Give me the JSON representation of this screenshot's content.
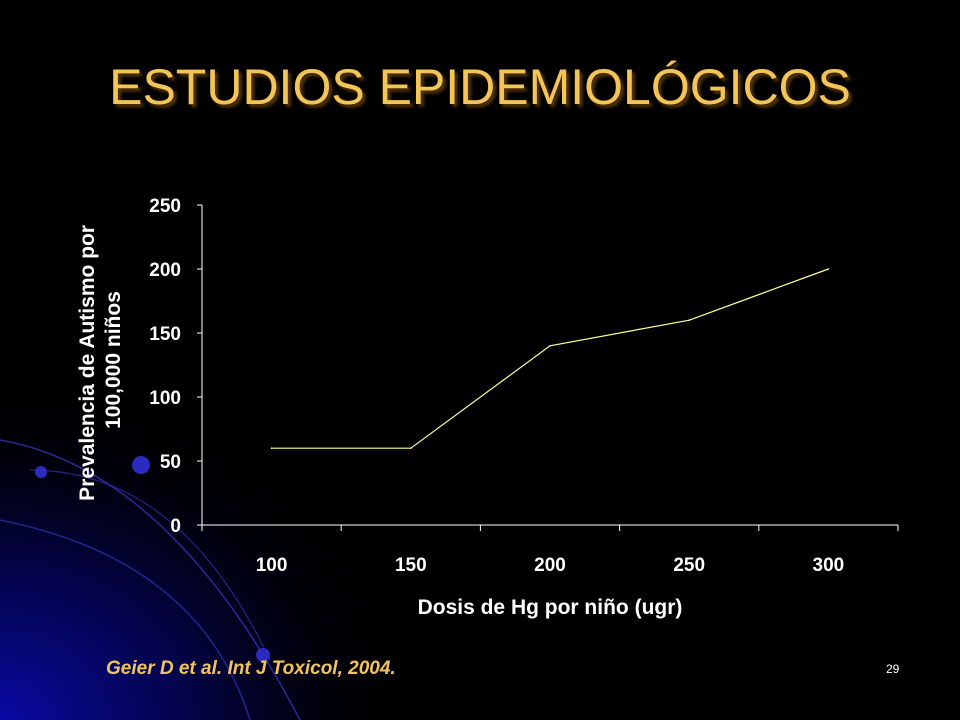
{
  "slide": {
    "title": "ESTUDIOS EPIDEMIOLÓGICOS",
    "citation": "Geier D et al. Int J Toxicol, 2004.",
    "page_number": "29",
    "colors": {
      "background": "#000000",
      "title": "#f3c458",
      "line": "#ffff99",
      "axis": "#ffffff",
      "decor": "#0a0a9a"
    }
  },
  "chart_data": {
    "type": "line",
    "categories": [
      "100",
      "150",
      "200",
      "250",
      "300"
    ],
    "series": [
      {
        "values": [
          60,
          60,
          140,
          160,
          200
        ]
      }
    ],
    "xlabel": "Dosis de Hg por niño (ugr)",
    "ylabel_lines": [
      "Prevalencia de Autismo por",
      "100,000 niños"
    ],
    "ylim": [
      0,
      250
    ],
    "yticks": [
      0,
      50,
      100,
      150,
      200,
      250
    ],
    "grid": false,
    "legend": "none"
  }
}
